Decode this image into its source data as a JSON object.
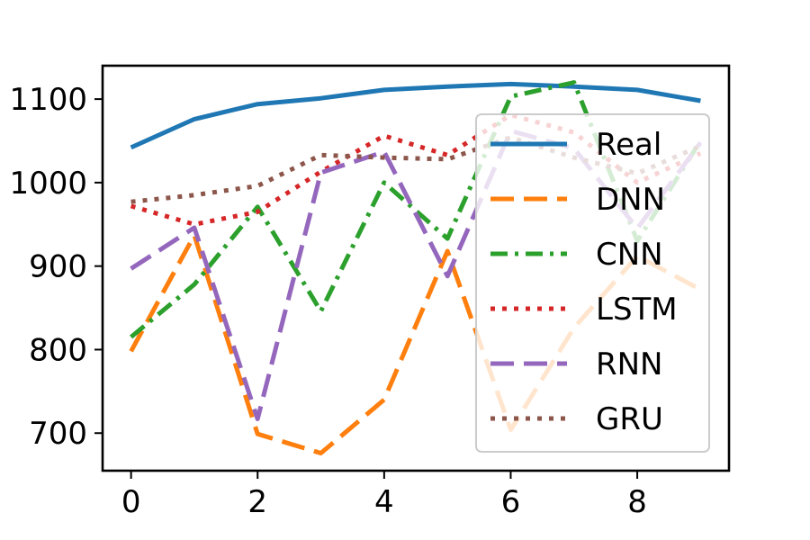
{
  "chart_data": {
    "type": "line",
    "title": "",
    "xlabel": "",
    "ylabel": "",
    "xlim": [
      -0.45,
      9.45
    ],
    "ylim": [
      655,
      1140
    ],
    "x": [
      0,
      1,
      2,
      3,
      4,
      5,
      6,
      7,
      8,
      9
    ],
    "x_ticks": [
      0,
      2,
      4,
      6,
      8
    ],
    "y_ticks": [
      700,
      800,
      900,
      1000,
      1100
    ],
    "grid": false,
    "legend_position": "right",
    "series": [
      {
        "name": "Real",
        "color": "#1f77b4",
        "style": "solid",
        "values": [
          1042,
          1076,
          1094,
          1101,
          1111,
          1115,
          1118,
          1115,
          1111,
          1098
        ]
      },
      {
        "name": "DNN",
        "color": "#ff7f0e",
        "style": "dashed",
        "values": [
          798,
          937,
          699,
          676,
          740,
          918,
          704,
          826,
          912,
          872
        ]
      },
      {
        "name": "CNN",
        "color": "#2ca02c",
        "style": "dashdot",
        "values": [
          815,
          878,
          971,
          846,
          1000,
          933,
          1103,
          1120,
          930,
          1050
        ]
      },
      {
        "name": "LSTM",
        "color": "#d62728",
        "style": "dotted",
        "values": [
          972,
          950,
          965,
          1013,
          1056,
          1033,
          1081,
          1060,
          1000,
          1035
        ]
      },
      {
        "name": "RNN",
        "color": "#9467bd",
        "style": "dashed",
        "values": [
          897,
          946,
          717,
          1012,
          1037,
          888,
          1062,
          1041,
          945,
          1048
        ]
      },
      {
        "name": "GRU",
        "color": "#8c564b",
        "style": "dotted",
        "values": [
          977,
          985,
          996,
          1033,
          1030,
          1028,
          1054,
          1030,
          1011,
          1044
        ]
      }
    ]
  }
}
